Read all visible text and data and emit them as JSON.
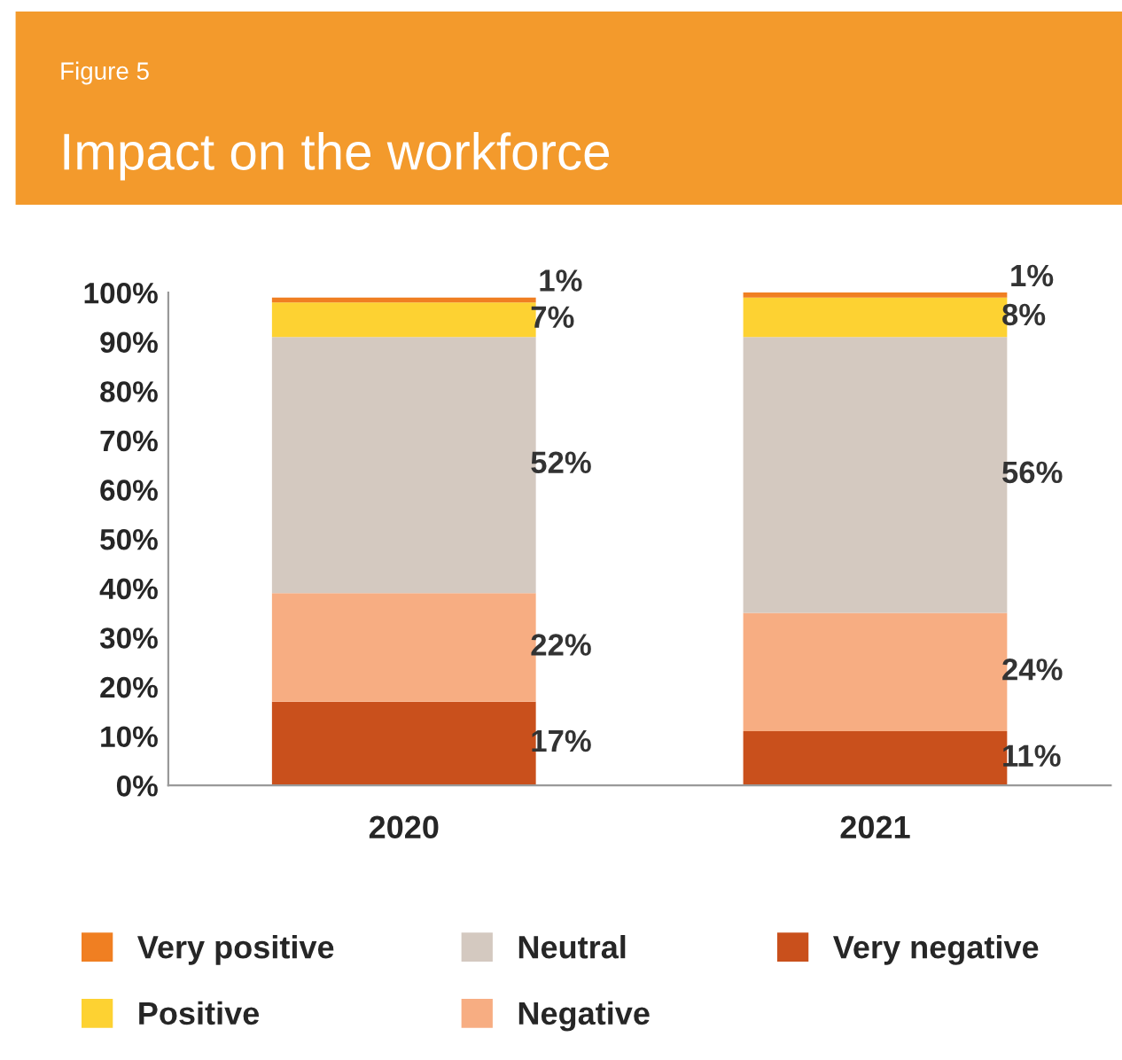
{
  "chart_data": {
    "type": "bar",
    "title": "Impact on the workforce",
    "subtitle": "Figure 5",
    "categories": [
      "2020",
      "2021"
    ],
    "stacked": true,
    "legend": "bottom",
    "grid": false,
    "ylim": [
      0,
      100
    ],
    "yticks": [
      {
        "value": 0,
        "label": "0%"
      },
      {
        "value": 10,
        "label": "10%"
      },
      {
        "value": 20,
        "label": "20%"
      },
      {
        "value": 30,
        "label": "30%"
      },
      {
        "value": 40,
        "label": "40%"
      },
      {
        "value": 50,
        "label": "50%"
      },
      {
        "value": 60,
        "label": "60%"
      },
      {
        "value": 70,
        "label": "70%"
      },
      {
        "value": 80,
        "label": "80%"
      },
      {
        "value": 90,
        "label": "90%"
      },
      {
        "value": 100,
        "label": "100%"
      }
    ],
    "series": [
      {
        "name": "Very negative",
        "color": "#c9501c",
        "values": [
          17,
          11
        ],
        "value_labels": [
          "17%",
          "11%"
        ]
      },
      {
        "name": "Negative",
        "color": "#f7ad82",
        "values": [
          22,
          24
        ],
        "value_labels": [
          "22%",
          "24%"
        ]
      },
      {
        "name": "Neutral",
        "color": "#d4c9c0",
        "values": [
          52,
          56
        ],
        "value_labels": [
          "52%",
          "56%"
        ]
      },
      {
        "name": "Positive",
        "color": "#fdd232",
        "values": [
          7,
          8
        ],
        "value_labels": [
          "7%",
          "8%"
        ]
      },
      {
        "name": "Very positive",
        "color": "#f07f22",
        "values": [
          1,
          1
        ],
        "value_labels": [
          "1%",
          "1%"
        ]
      }
    ]
  }
}
